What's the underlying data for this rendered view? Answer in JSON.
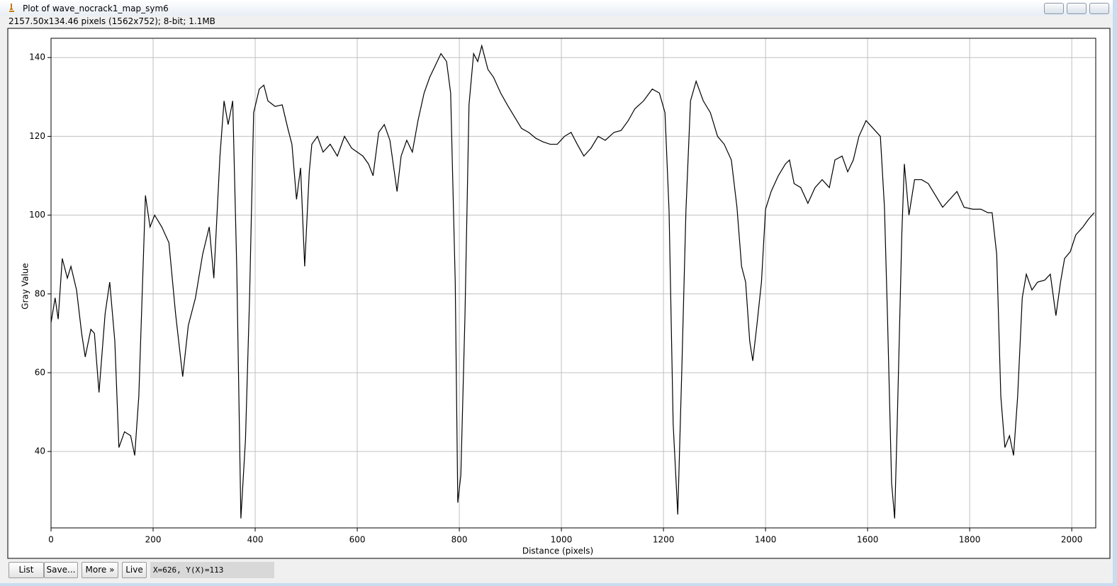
{
  "window": {
    "title": "Plot of wave_nocrack1_map_sym6",
    "info": "2157.50x134.46 pixels (1562x752); 8-bit; 1.1MB"
  },
  "chart_data": {
    "type": "line",
    "xlabel": "Distance (pixels)",
    "ylabel": "Gray Value",
    "color": "#000000",
    "grid": true,
    "xlim": [
      0,
      2047
    ],
    "ylim": [
      20.6,
      144.9
    ],
    "xticks": [
      0,
      200,
      400,
      600,
      800,
      1000,
      1200,
      1400,
      1600,
      1800,
      2000
    ],
    "yticks": [
      40,
      60,
      80,
      100,
      120,
      140
    ],
    "x": [
      0,
      8,
      14,
      22,
      32,
      39,
      50,
      60,
      67,
      78,
      85,
      94,
      106,
      115,
      125,
      133,
      144,
      156,
      164,
      172,
      185,
      194,
      203,
      217,
      231,
      244,
      258,
      269,
      283,
      297,
      310,
      319,
      331,
      339,
      347,
      356,
      364,
      372,
      381,
      389,
      397,
      408,
      417,
      425,
      439,
      453,
      464,
      472,
      481,
      489,
      497,
      506,
      511,
      522,
      533,
      547,
      561,
      575,
      589,
      600,
      611,
      622,
      631,
      642,
      653,
      664,
      678,
      686,
      697,
      708,
      719,
      731,
      742,
      753,
      764,
      775,
      783,
      792,
      797,
      803,
      811,
      819,
      828,
      836,
      844,
      856,
      867,
      881,
      894,
      908,
      922,
      936,
      950,
      964,
      978,
      992,
      1006,
      1019,
      1031,
      1044,
      1058,
      1072,
      1086,
      1103,
      1117,
      1131,
      1144,
      1161,
      1178,
      1192,
      1203,
      1211,
      1219,
      1228,
      1236,
      1244,
      1253,
      1264,
      1278,
      1292,
      1306,
      1319,
      1333,
      1344,
      1353,
      1361,
      1369,
      1375,
      1383,
      1392,
      1400,
      1411,
      1425,
      1439,
      1447,
      1456,
      1469,
      1483,
      1497,
      1511,
      1525,
      1536,
      1550,
      1561,
      1572,
      1583,
      1597,
      1611,
      1625,
      1633,
      1639,
      1647,
      1653,
      1658,
      1667,
      1672,
      1681,
      1692,
      1706,
      1719,
      1733,
      1747,
      1761,
      1775,
      1789,
      1806,
      1822,
      1836,
      1844,
      1853,
      1861,
      1869,
      1878,
      1886,
      1894,
      1903,
      1911,
      1922,
      1933,
      1947,
      1958,
      1969,
      1978,
      1986,
      1997,
      2008,
      2022,
      2033,
      2044
    ],
    "values": [
      72.7,
      79,
      73.6,
      89,
      84,
      87,
      81,
      70,
      64,
      71,
      70,
      55,
      75,
      83,
      68,
      41,
      45,
      44,
      39,
      54,
      105,
      97,
      100,
      97,
      93,
      75,
      59,
      72,
      79,
      90,
      97,
      84,
      115,
      129,
      123,
      129,
      86,
      23,
      43,
      79,
      126,
      132,
      133,
      129,
      127.6,
      128,
      122,
      118,
      104,
      112,
      87,
      111,
      118,
      120,
      116,
      118,
      115,
      120,
      117,
      116,
      115,
      113,
      110,
      121,
      123,
      119,
      106,
      115,
      119,
      116,
      124,
      131,
      135,
      138,
      141,
      139,
      131,
      83,
      27,
      34,
      74,
      128,
      141,
      139,
      143,
      137,
      135,
      131,
      128,
      125,
      122,
      121,
      119.5,
      118.6,
      118,
      118,
      120,
      121,
      118,
      115,
      117,
      120,
      119,
      121,
      121.5,
      124,
      127,
      129,
      132,
      131,
      126,
      101,
      47,
      24,
      61,
      101,
      129,
      134,
      129,
      126,
      120,
      118,
      114,
      102,
      87,
      83,
      68,
      63,
      72,
      83,
      101.5,
      106,
      110,
      113,
      114,
      108,
      107,
      103,
      107,
      109,
      107,
      114,
      115,
      111,
      114,
      120,
      124,
      122,
      120,
      102,
      74,
      32,
      23,
      47,
      95,
      113,
      100,
      109,
      109,
      108,
      105,
      102,
      104,
      106,
      102,
      101.5,
      101.5,
      100.6,
      100.6,
      90,
      54,
      41,
      44,
      39,
      54,
      79,
      85,
      81,
      83,
      83.5,
      85,
      74.5,
      83,
      89,
      90.7,
      95,
      97,
      99,
      100.6
    ]
  },
  "buttons": [
    "List",
    "Save...",
    "More »",
    "Live"
  ],
  "status": "X=626, Y(X)=113"
}
